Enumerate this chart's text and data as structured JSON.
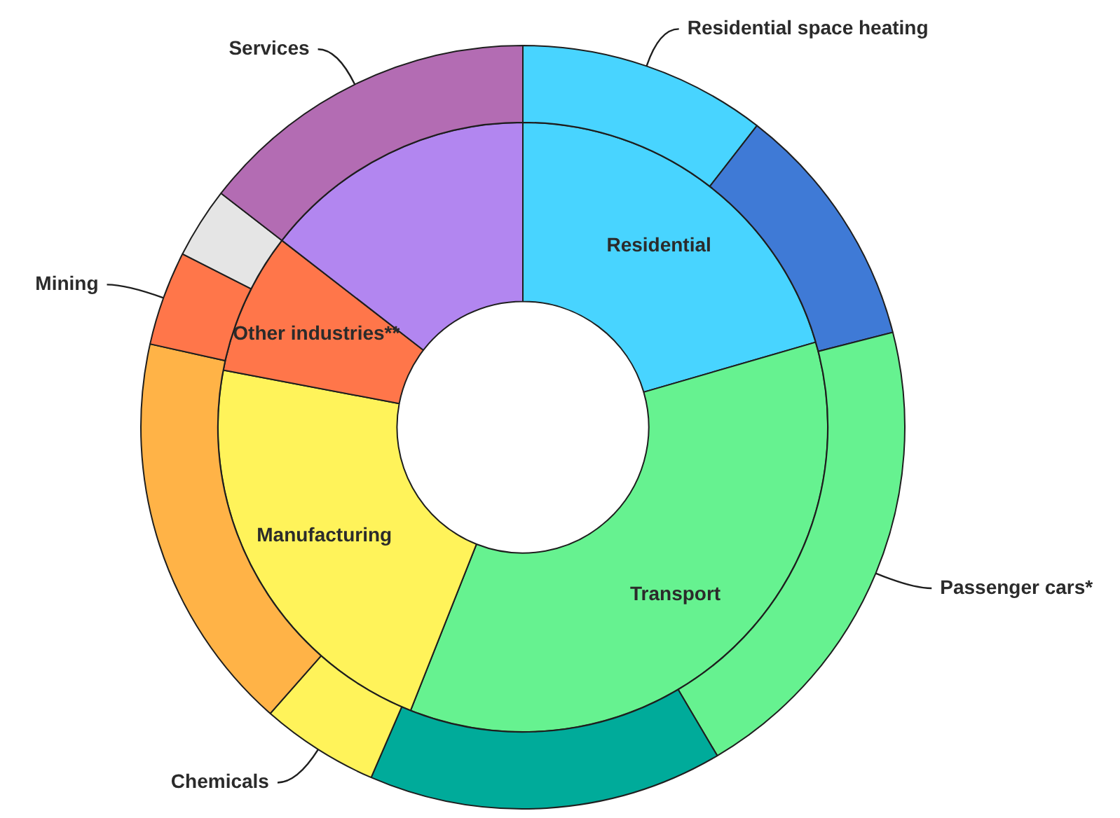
{
  "chart_data": [
    {
      "type": "donut",
      "legend": false,
      "categories": [
        "Residential",
        "Transport",
        "Manufacturing",
        "Other industries**",
        null
      ],
      "values": [
        20.5,
        35.5,
        22,
        7.5,
        14.5
      ],
      "colors": [
        "#48d4ff",
        "#66f290",
        "#fff35a",
        "#ff764a",
        "#b286f0"
      ]
    },
    {
      "type": "donut",
      "legend": false,
      "categories": [
        "Residential space heating",
        null,
        "Passenger cars*",
        null,
        "Chemicals",
        null,
        "Mining",
        null,
        "Services"
      ],
      "values": [
        10.5,
        10.5,
        20.5,
        15,
        5,
        17,
        4,
        3,
        14.5
      ],
      "colors": [
        "#48d4ff",
        "#3f7ad6",
        "#66f290",
        "#00ab9a",
        "#fff35a",
        "#ffb347",
        "#ff764a",
        "#e5e5e5",
        "#b36cb3"
      ]
    }
  ]
}
